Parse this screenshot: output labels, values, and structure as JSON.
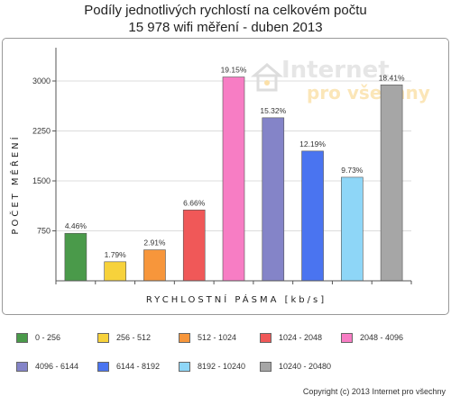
{
  "chart_data": {
    "type": "bar",
    "title_lines": [
      "Podíly jednotlivých rychlostí na celkovém počtu",
      "15 978 wifi měření - duben 2013"
    ],
    "xlabel": "RYCHLOSTNÍ PÁSMA [kb/s]",
    "ylabel": "POČET MĚŘENÍ",
    "ylim": [
      0,
      3500
    ],
    "yticks": [
      750,
      1500,
      2250,
      3000
    ],
    "grid": true,
    "legend_position": "bottom",
    "categories": [
      "0 - 256",
      "256 - 512",
      "512 - 1024",
      "1024 - 2048",
      "2048 - 4096",
      "4096 - 6144",
      "6144 - 8192",
      "8192 - 10240",
      "10240 - 20480"
    ],
    "values": [
      713,
      286,
      465,
      1064,
      3060,
      2448,
      1948,
      1555,
      2942
    ],
    "data_labels": [
      "4.46%",
      "1.79%",
      "2.91%",
      "6.66%",
      "19.15%",
      "15.32%",
      "12.19%",
      "9.73%",
      "18.41%"
    ],
    "colors": [
      "#4a9a4a",
      "#f7d23b",
      "#f7963b",
      "#f05858",
      "#f77dc4",
      "#8484c8",
      "#4a74f0",
      "#8ed6f7",
      "#a6a6a6"
    ]
  },
  "watermark": {
    "line1": "Internet",
    "line2": "pro všechny",
    "icon": "house-icon"
  },
  "copyright": "Copyright (c) 2013 Internet pro všechny"
}
